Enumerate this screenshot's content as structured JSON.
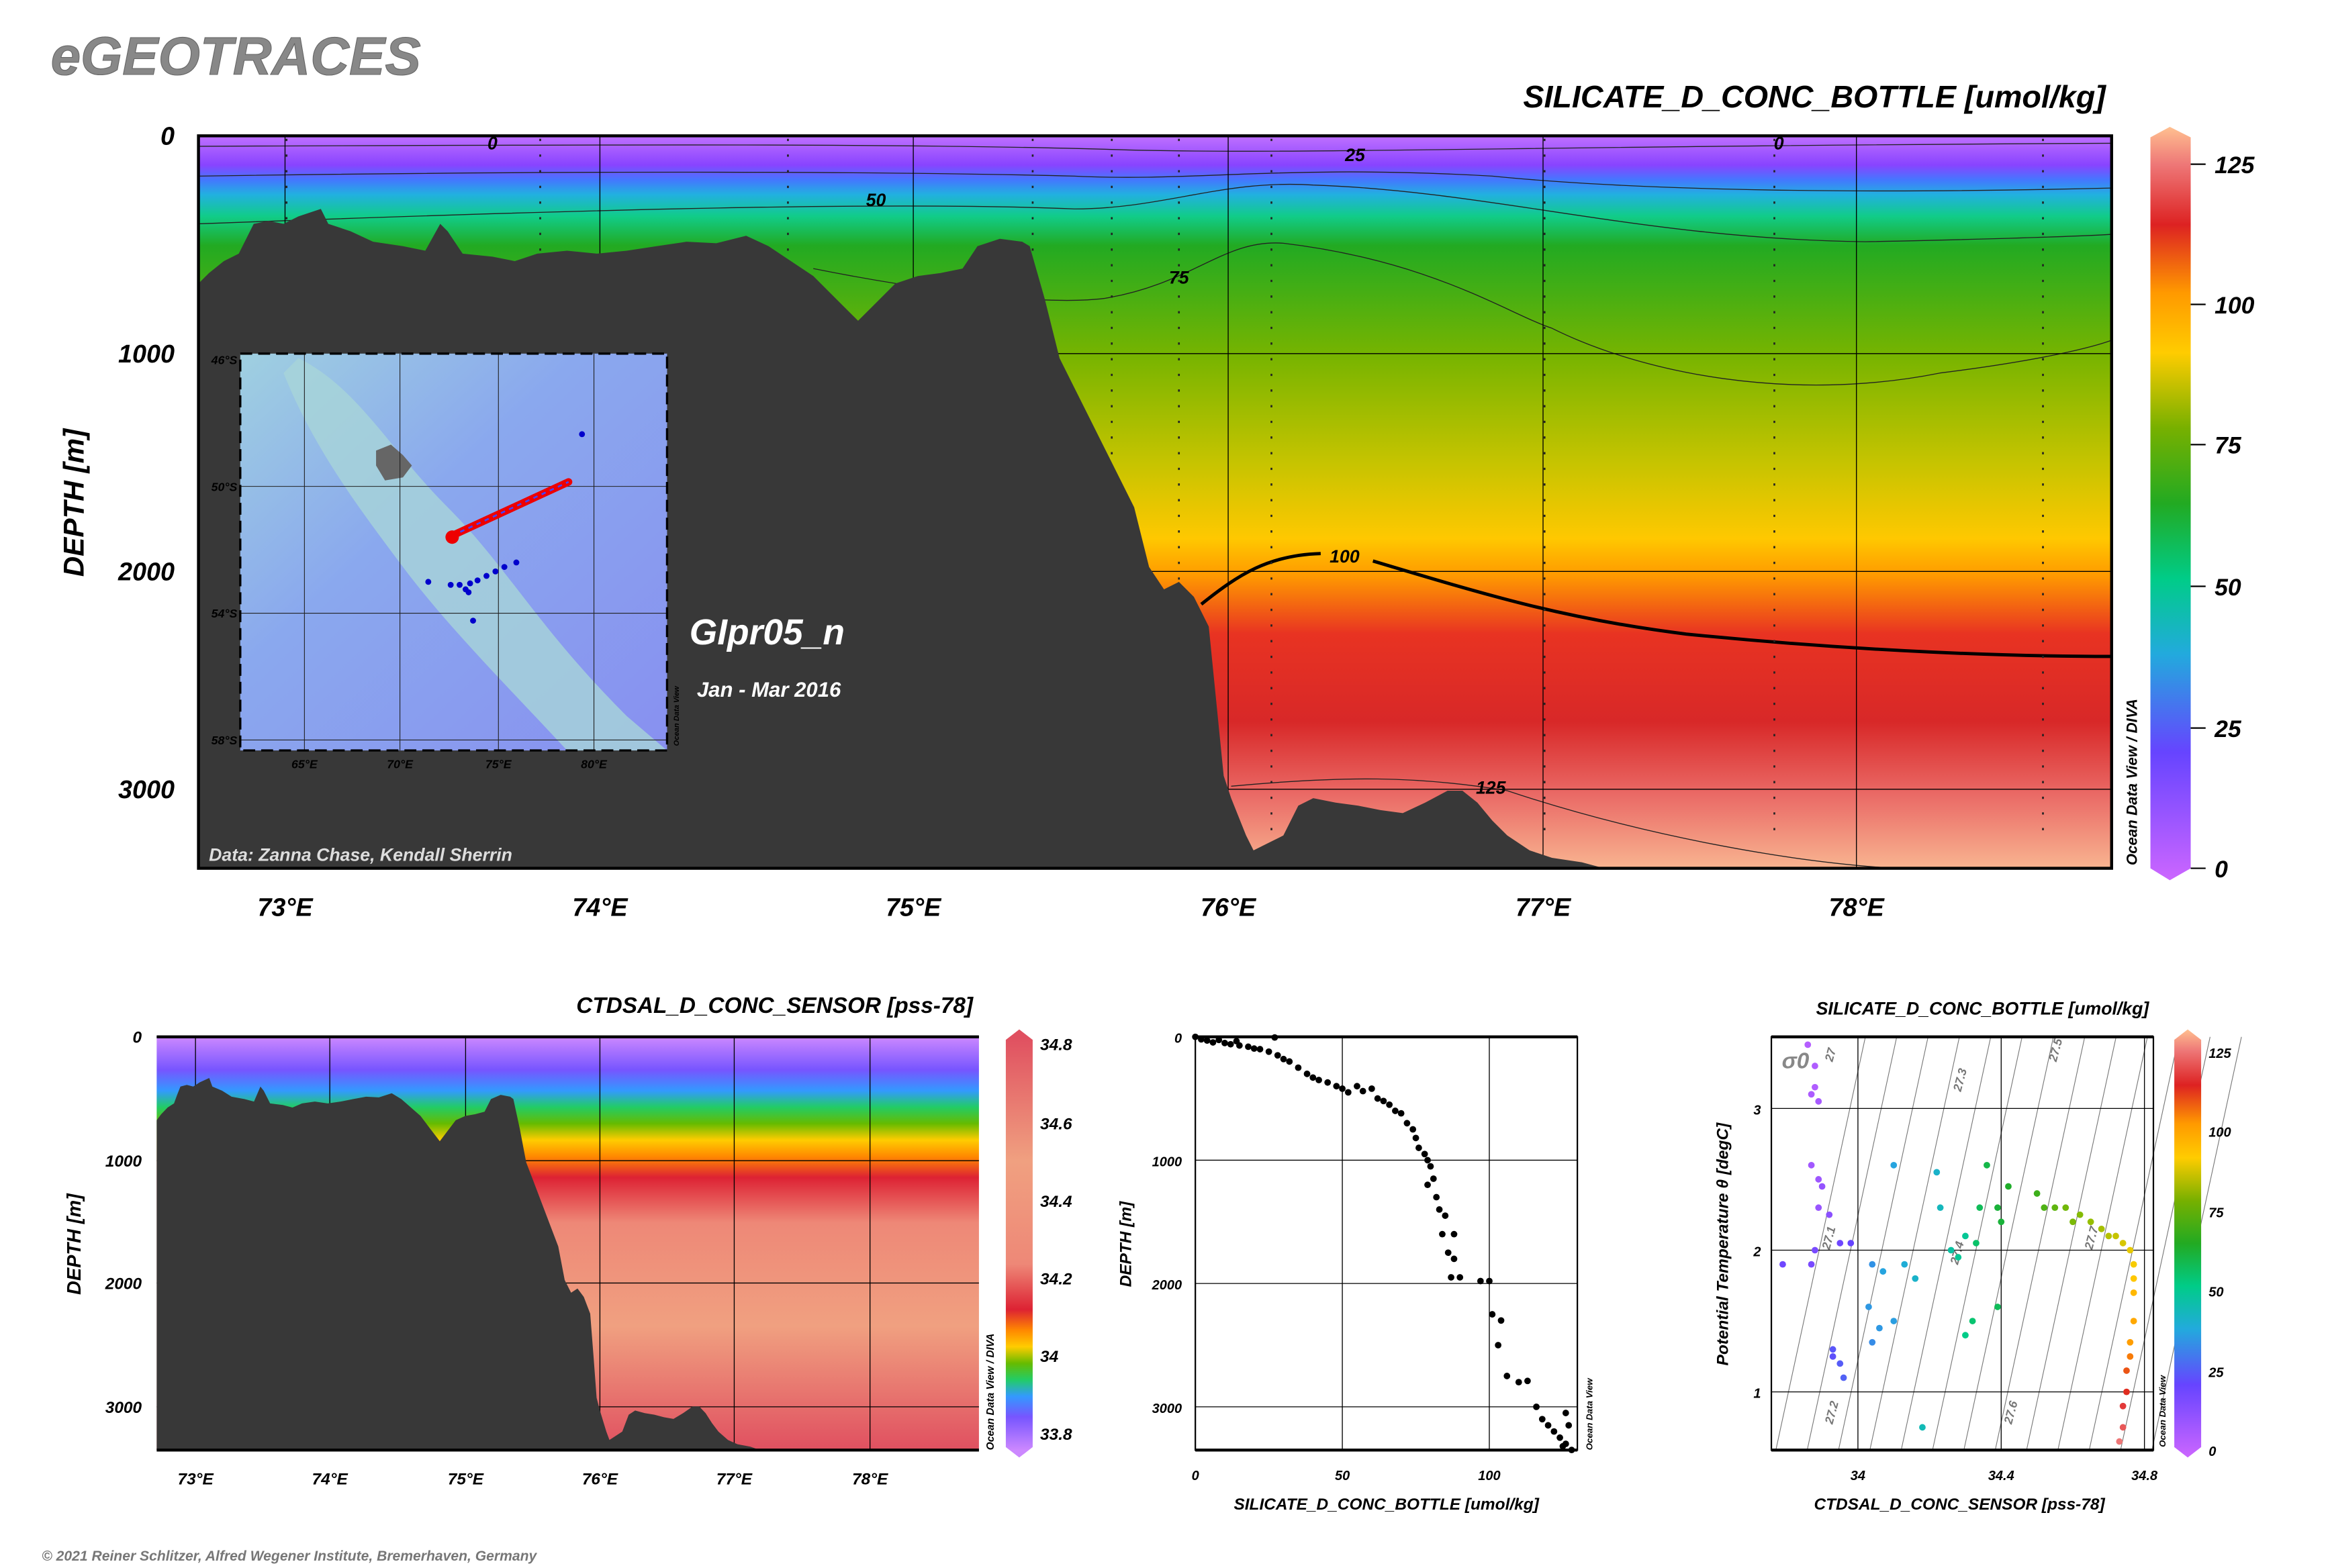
{
  "header": {
    "logo": "eGEOTRACES",
    "copyright": "© 2021 Reiner Schlitzer, Alfred Wegener Institute, Bremerhaven, Germany"
  },
  "main_section": {
    "title": "SILICATE_D_CONC_BOTTLE [umol/kg]",
    "ylabel": "DEPTH [m]",
    "cruise": "GIpr05_n",
    "period": "Jan - Mar 2016",
    "credit": "Data: Zanna Chase, Kendall Sherrin",
    "watermark": "Ocean Data View / DIVA",
    "inset_watermark": "Ocean Data View",
    "inset_lat_labels": [
      "46°S",
      "50°S",
      "54°S",
      "58°S"
    ],
    "inset_lon_labels": [
      "65°E",
      "70°E",
      "75°E",
      "80°E"
    ]
  },
  "chart_data": [
    {
      "type": "heatmap",
      "name": "silicate-section",
      "title": "SILICATE_D_CONC_BOTTLE [umol/kg]",
      "xlabel": "",
      "ylabel": "DEPTH [m]",
      "x_ticks": [
        "73°E",
        "74°E",
        "75°E",
        "76°E",
        "77°E",
        "78°E"
      ],
      "y_ticks": [
        "0",
        "1000",
        "2000",
        "3000"
      ],
      "xlim": [
        72.72,
        78.81
      ],
      "ylim": [
        3370,
        0
      ],
      "contour_labels": [
        "0",
        "25",
        "50",
        "75",
        "100",
        "125",
        "0"
      ],
      "colorbar_ticks": [
        "0",
        "25",
        "50",
        "75",
        "100",
        "125"
      ],
      "colorbar_range": [
        0,
        130
      ]
    },
    {
      "type": "heatmap",
      "name": "salinity-section",
      "title": "CTDSAL_D_CONC_SENSOR [pss-78]",
      "ylabel": "DEPTH [m]",
      "x_ticks": [
        "73°E",
        "74°E",
        "75°E",
        "76°E",
        "77°E",
        "78°E"
      ],
      "y_ticks": [
        "0",
        "1000",
        "2000",
        "3000"
      ],
      "colorbar_ticks": [
        "34.8",
        "34.6",
        "34.4",
        "34.2",
        "34",
        "33.8"
      ],
      "colorbar_range": [
        33.75,
        34.82
      ],
      "watermark": "Ocean Data View / DIVA"
    },
    {
      "type": "scatter",
      "name": "silicate-profile",
      "xlabel": "SILICATE_D_CONC_BOTTLE [umol/kg]",
      "ylabel": "DEPTH [m]",
      "x_ticks": [
        "0",
        "50",
        "100"
      ],
      "y_ticks": [
        "0",
        "1000",
        "2000",
        "3000"
      ],
      "xlim": [
        0,
        130
      ],
      "ylim": [
        3370,
        0
      ],
      "watermark": "Ocean Data View",
      "points": [
        [
          0,
          0
        ],
        [
          2,
          20
        ],
        [
          4,
          30
        ],
        [
          6,
          45
        ],
        [
          8,
          25
        ],
        [
          10,
          50
        ],
        [
          12,
          60
        ],
        [
          14,
          35
        ],
        [
          15,
          70
        ],
        [
          18,
          80
        ],
        [
          20,
          95
        ],
        [
          22,
          100
        ],
        [
          25,
          120
        ],
        [
          27,
          5
        ],
        [
          28,
          150
        ],
        [
          30,
          180
        ],
        [
          32,
          200
        ],
        [
          35,
          250
        ],
        [
          38,
          300
        ],
        [
          40,
          330
        ],
        [
          42,
          350
        ],
        [
          45,
          370
        ],
        [
          48,
          400
        ],
        [
          50,
          420
        ],
        [
          52,
          450
        ],
        [
          55,
          400
        ],
        [
          57,
          440
        ],
        [
          60,
          420
        ],
        [
          62,
          500
        ],
        [
          64,
          520
        ],
        [
          66,
          550
        ],
        [
          68,
          600
        ],
        [
          70,
          620
        ],
        [
          72,
          700
        ],
        [
          74,
          750
        ],
        [
          75,
          820
        ],
        [
          76,
          900
        ],
        [
          78,
          950
        ],
        [
          79,
          1000
        ],
        [
          80,
          1050
        ],
        [
          81,
          1150
        ],
        [
          79,
          1200
        ],
        [
          82,
          1300
        ],
        [
          83,
          1400
        ],
        [
          85,
          1450
        ],
        [
          84,
          1600
        ],
        [
          88,
          1600
        ],
        [
          86,
          1750
        ],
        [
          88,
          1800
        ],
        [
          90,
          1950
        ],
        [
          87,
          1950
        ],
        [
          97,
          1980
        ],
        [
          100,
          1980
        ],
        [
          101,
          2250
        ],
        [
          104,
          2300
        ],
        [
          103,
          2500
        ],
        [
          106,
          2750
        ],
        [
          110,
          2800
        ],
        [
          113,
          2790
        ],
        [
          116,
          3000
        ],
        [
          118,
          3100
        ],
        [
          120,
          3150
        ],
        [
          122,
          3200
        ],
        [
          124,
          3250
        ],
        [
          126,
          3300
        ],
        [
          128,
          3350
        ],
        [
          125,
          3320
        ],
        [
          127,
          3150
        ],
        [
          126,
          3050
        ]
      ]
    },
    {
      "type": "scatter",
      "name": "theta-s-diagram",
      "title": "SILICATE_D_CONC_BOTTLE [umol/kg]",
      "xlabel": "CTDSAL_D_CONC_SENSOR [pss-78]",
      "ylabel": "Potential Temperature θ [degC]",
      "x_ticks": [
        "34",
        "34.4",
        "34.8"
      ],
      "y_ticks": [
        "1",
        "2",
        "3"
      ],
      "xlim": [
        33.76,
        34.84
      ],
      "ylim": [
        0.6,
        3.5
      ],
      "isopycnal_symbol": "σ0",
      "isopycnal_labels": [
        "27",
        "27.1",
        "27.2",
        "27.3",
        "27.4",
        "27.5",
        "27.6",
        "27.7"
      ],
      "colorbar_ticks": [
        "0",
        "25",
        "50",
        "75",
        "100",
        "125"
      ],
      "colorbar_range": [
        0,
        130
      ],
      "watermark": "Ocean Data View",
      "points": [
        [
          33.86,
          3.45,
          5
        ],
        [
          33.88,
          3.3,
          6
        ],
        [
          33.87,
          3.1,
          7
        ],
        [
          33.89,
          3.05,
          8
        ],
        [
          33.88,
          3.15,
          6
        ],
        [
          33.87,
          2.6,
          9
        ],
        [
          33.89,
          2.5,
          10
        ],
        [
          33.9,
          2.45,
          12
        ],
        [
          33.89,
          2.3,
          11
        ],
        [
          33.92,
          2.25,
          14
        ],
        [
          33.88,
          2.0,
          18
        ],
        [
          33.95,
          2.05,
          20
        ],
        [
          33.98,
          2.05,
          22
        ],
        [
          33.79,
          1.9,
          20
        ],
        [
          33.87,
          1.9,
          18
        ],
        [
          33.93,
          1.3,
          25
        ],
        [
          33.95,
          1.2,
          26
        ],
        [
          33.96,
          1.1,
          27
        ],
        [
          33.93,
          1.25,
          24
        ],
        [
          34.1,
          2.6,
          38
        ],
        [
          34.04,
          1.9,
          35
        ],
        [
          34.07,
          1.85,
          38
        ],
        [
          34.13,
          1.9,
          40
        ],
        [
          34.03,
          1.6,
          36
        ],
        [
          34.1,
          1.5,
          37
        ],
        [
          34.06,
          1.45,
          36
        ],
        [
          34.04,
          1.35,
          34
        ],
        [
          34.16,
          1.8,
          42
        ],
        [
          34.23,
          2.3,
          44
        ],
        [
          34.22,
          2.55,
          42
        ],
        [
          34.3,
          2.1,
          50
        ],
        [
          34.26,
          2.0,
          48
        ],
        [
          34.28,
          1.95,
          50
        ],
        [
          34.34,
          2.3,
          58
        ],
        [
          34.36,
          2.6,
          60
        ],
        [
          34.39,
          2.3,
          62
        ],
        [
          34.42,
          2.45,
          64
        ],
        [
          34.4,
          2.2,
          62
        ],
        [
          34.33,
          2.05,
          56
        ],
        [
          34.39,
          1.6,
          58
        ],
        [
          34.32,
          1.5,
          55
        ],
        [
          34.3,
          1.4,
          52
        ],
        [
          34.18,
          0.75,
          45
        ],
        [
          34.5,
          2.4,
          68
        ],
        [
          34.52,
          2.3,
          70
        ],
        [
          34.55,
          2.3,
          72
        ],
        [
          34.58,
          2.3,
          74
        ],
        [
          34.6,
          2.2,
          75
        ],
        [
          34.62,
          2.25,
          76
        ],
        [
          34.65,
          2.2,
          78
        ],
        [
          34.68,
          2.15,
          80
        ],
        [
          34.7,
          2.1,
          82
        ],
        [
          34.72,
          2.1,
          84
        ],
        [
          34.74,
          2.05,
          86
        ],
        [
          34.76,
          2.0,
          88
        ],
        [
          34.77,
          1.9,
          90
        ],
        [
          34.77,
          1.8,
          92
        ],
        [
          34.77,
          1.7,
          95
        ],
        [
          34.77,
          1.5,
          98
        ],
        [
          34.76,
          1.35,
          100
        ],
        [
          34.76,
          1.25,
          104
        ],
        [
          34.75,
          1.15,
          108
        ],
        [
          34.75,
          1.0,
          112
        ],
        [
          34.74,
          0.9,
          116
        ],
        [
          34.74,
          0.75,
          120
        ],
        [
          34.73,
          0.65,
          124
        ]
      ]
    }
  ]
}
